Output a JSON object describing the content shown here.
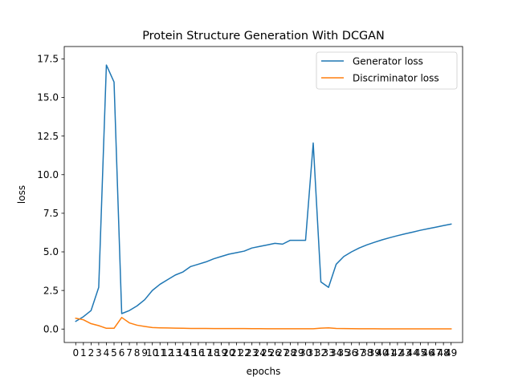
{
  "chart_data": {
    "type": "line",
    "title": "Protein Structure Generation With DCGAN",
    "xlabel": "epochs",
    "ylabel": "loss",
    "x": [
      0,
      1,
      2,
      3,
      4,
      5,
      6,
      7,
      8,
      9,
      10,
      11,
      12,
      13,
      14,
      15,
      16,
      17,
      18,
      19,
      20,
      21,
      22,
      23,
      24,
      25,
      26,
      27,
      28,
      29,
      30,
      31,
      32,
      33,
      34,
      35,
      36,
      37,
      38,
      39,
      40,
      41,
      42,
      43,
      44,
      45,
      46,
      47,
      48,
      49
    ],
    "x_tick_labels": [
      "0",
      "1",
      "2",
      "3",
      "4",
      "5",
      "6",
      "7",
      "8",
      "9",
      "10",
      "11",
      "12",
      "13",
      "14",
      "15",
      "16",
      "17",
      "18",
      "19",
      "20",
      "21",
      "22",
      "23",
      "24",
      "25",
      "26",
      "27",
      "28",
      "29",
      "30",
      "31",
      "32",
      "33",
      "34",
      "35",
      "36",
      "37",
      "38",
      "39",
      "40",
      "41",
      "42",
      "43",
      "44",
      "45",
      "46",
      "47",
      "48",
      "49"
    ],
    "xlim": [
      -1.5,
      50.5
    ],
    "ylim": [
      -0.87,
      18.3
    ],
    "y_ticks": [
      0.0,
      2.5,
      5.0,
      7.5,
      10.0,
      12.5,
      15.0,
      17.5
    ],
    "y_tick_labels": [
      "0.0",
      "2.5",
      "5.0",
      "7.5",
      "10.0",
      "12.5",
      "15.0",
      "17.5"
    ],
    "grid": false,
    "legend_position": "top-right",
    "series": [
      {
        "name": "Generator loss",
        "color": "#1f77b4",
        "values": [
          0.5,
          0.8,
          1.2,
          2.7,
          17.1,
          16.0,
          1.0,
          1.2,
          1.5,
          1.9,
          2.5,
          2.9,
          3.2,
          3.5,
          3.7,
          4.05,
          4.2,
          4.35,
          4.55,
          4.7,
          4.85,
          4.95,
          5.05,
          5.25,
          5.35,
          5.45,
          5.55,
          5.5,
          5.75,
          5.75,
          5.75,
          12.05,
          3.05,
          2.7,
          4.2,
          4.7,
          5.0,
          5.25,
          5.45,
          5.62,
          5.78,
          5.92,
          6.05,
          6.17,
          6.28,
          6.4,
          6.5,
          6.6,
          6.7,
          6.8
        ]
      },
      {
        "name": "Discriminator loss",
        "color": "#ff7f0e",
        "values": [
          0.7,
          0.6,
          0.35,
          0.22,
          0.05,
          0.05,
          0.75,
          0.4,
          0.25,
          0.17,
          0.1,
          0.08,
          0.07,
          0.06,
          0.05,
          0.04,
          0.04,
          0.04,
          0.035,
          0.035,
          0.03,
          0.03,
          0.03,
          0.025,
          0.025,
          0.02,
          0.02,
          0.02,
          0.02,
          0.02,
          0.02,
          0.02,
          0.06,
          0.08,
          0.04,
          0.03,
          0.025,
          0.02,
          0.02,
          0.02,
          0.015,
          0.015,
          0.015,
          0.015,
          0.01,
          0.01,
          0.01,
          0.01,
          0.01,
          0.01
        ]
      }
    ]
  }
}
